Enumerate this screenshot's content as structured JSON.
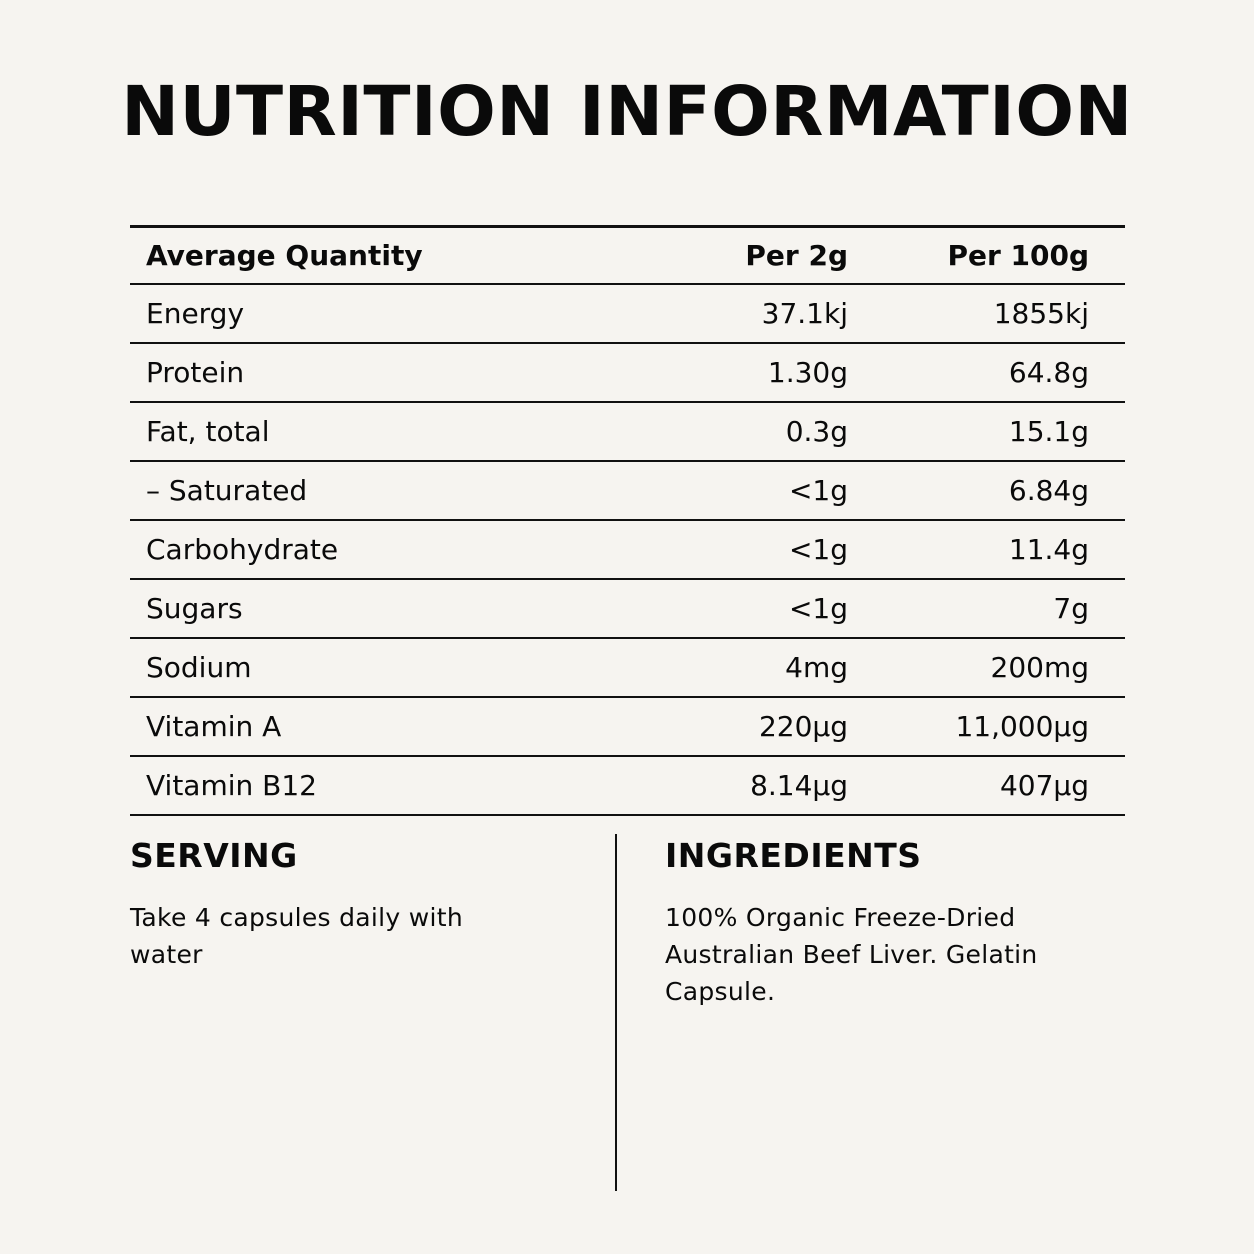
{
  "title": "NUTRITION INFORMATION",
  "table": {
    "headers": [
      "Average Quantity",
      "Per 2g",
      "Per 100g"
    ],
    "rows": [
      [
        "Energy",
        "37.1kj",
        "1855kj"
      ],
      [
        "Protein",
        "1.30g",
        "64.8g"
      ],
      [
        "Fat, total",
        "0.3g",
        "15.1g"
      ],
      [
        "– Saturated",
        "<1g",
        "6.84g"
      ],
      [
        "Carbohydrate",
        "<1g",
        "11.4g"
      ],
      [
        "Sugars",
        "<1g",
        "7g"
      ],
      [
        "Sodium",
        "4mg",
        "200mg"
      ],
      [
        "Vitamin A",
        "220µg",
        "11,000µg"
      ],
      [
        "Vitamin B12",
        "8.14µg",
        "407µg"
      ]
    ]
  },
  "serving": {
    "heading": "SERVING",
    "text": "Take 4 capsules daily with water"
  },
  "ingredients": {
    "heading": "INGREDIENTS",
    "text": "100% Organic Freeze-Dried Australian Beef Liver. Gelatin Capsule."
  }
}
